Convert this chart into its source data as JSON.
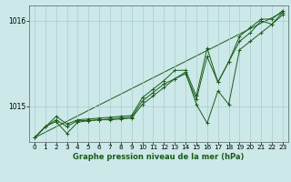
{
  "background_color": "#cce8e8",
  "grid_color": "#aacccc",
  "line_color": "#1a5c1a",
  "title": "Graphe pression niveau de la mer (hPa)",
  "ylim": [
    1014.58,
    1016.18
  ],
  "xlim": [
    -0.5,
    23.5
  ],
  "yticks": [
    1015.0,
    1016.0
  ],
  "xticks": [
    0,
    1,
    2,
    3,
    4,
    5,
    6,
    7,
    8,
    9,
    10,
    11,
    12,
    13,
    14,
    15,
    16,
    17,
    18,
    19,
    20,
    21,
    22,
    23
  ],
  "series": [
    {
      "x": [
        0,
        1,
        2,
        3,
        4,
        5,
        6,
        7,
        8,
        9,
        10,
        11,
        12,
        13,
        14,
        15,
        16,
        17,
        18,
        19,
        20,
        21,
        22,
        23
      ],
      "y": [
        1014.63,
        1014.76,
        1014.82,
        1014.68,
        1014.81,
        1014.83,
        1014.84,
        1014.84,
        1014.85,
        1014.86,
        1015.02,
        1015.12,
        1015.22,
        1015.32,
        1015.38,
        1015.08,
        1015.58,
        1015.28,
        1015.52,
        1015.76,
        1015.86,
        1016.0,
        1015.96,
        1016.1
      ]
    },
    {
      "x": [
        0,
        1,
        2,
        3,
        4,
        5,
        6,
        7,
        8,
        9,
        10,
        11,
        12,
        13,
        14,
        15,
        16,
        17,
        18,
        19,
        20,
        21,
        22,
        23
      ],
      "y": [
        1014.63,
        1014.76,
        1014.84,
        1014.76,
        1014.83,
        1014.83,
        1014.84,
        1014.85,
        1014.86,
        1014.87,
        1015.06,
        1015.16,
        1015.26,
        1015.32,
        1015.4,
        1015.02,
        1014.8,
        1015.18,
        1015.02,
        1015.66,
        1015.76,
        1015.86,
        1015.96,
        1016.07
      ]
    },
    {
      "x": [
        0,
        2,
        3,
        4,
        5,
        6,
        7,
        8,
        9,
        10,
        11,
        12,
        13,
        14,
        15,
        16,
        17,
        18,
        19,
        20,
        21,
        22,
        23
      ],
      "y": [
        1014.63,
        1014.88,
        1014.79,
        1014.84,
        1014.85,
        1014.86,
        1014.87,
        1014.88,
        1014.89,
        1015.1,
        1015.2,
        1015.3,
        1015.42,
        1015.42,
        1015.12,
        1015.68,
        1015.28,
        1015.52,
        1015.82,
        1015.92,
        1016.02,
        1016.02,
        1016.12
      ]
    },
    {
      "x": [
        0,
        23
      ],
      "y": [
        1014.63,
        1016.1
      ]
    }
  ]
}
